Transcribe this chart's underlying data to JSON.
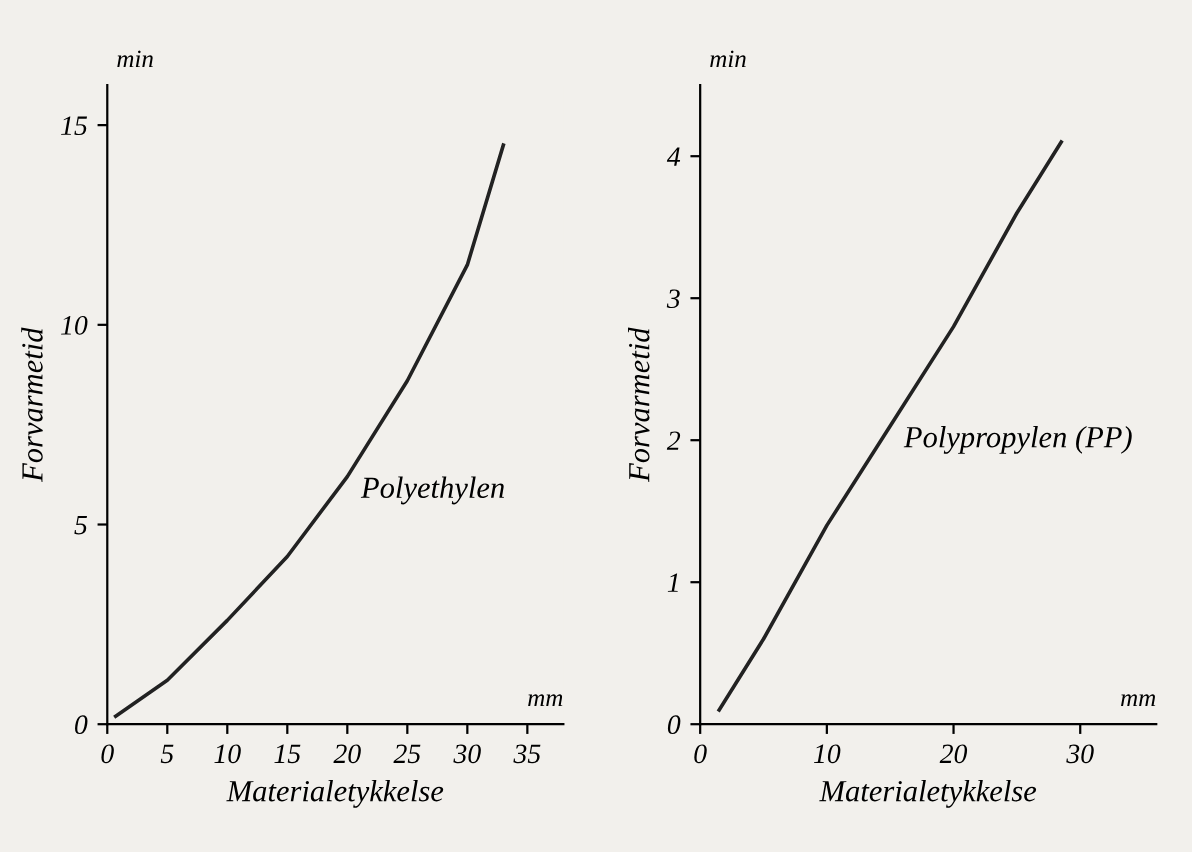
{
  "chart_data": [
    {
      "type": "line",
      "xlabel": "Materialetykkelse",
      "ylabel": "Forvarmetid",
      "annotations": [
        "min",
        "mm"
      ],
      "series": [
        {
          "name": "Polyethylen",
          "color": "#222222",
          "x": [
            0.7,
            5,
            10,
            15,
            20,
            25,
            30,
            33
          ],
          "values": [
            0.2,
            1.1,
            2.6,
            4.2,
            6.2,
            8.6,
            11.5,
            14.5
          ]
        }
      ],
      "xlim": [
        0,
        38
      ],
      "ylim": [
        0,
        16
      ],
      "xticks": [
        0,
        5,
        10,
        15,
        20,
        25,
        30,
        35
      ],
      "yticks": [
        0,
        5,
        10,
        15
      ],
      "grid": false,
      "legend": false
    },
    {
      "type": "line",
      "xlabel": "Materialetykkelse",
      "ylabel": "Forvarmetid",
      "annotations": [
        "min",
        "mm"
      ],
      "series": [
        {
          "name": "Polypropylen (PP)",
          "color": "#222222",
          "x": [
            1.5,
            5,
            10,
            15,
            20,
            25,
            28.5
          ],
          "values": [
            0.1,
            0.6,
            1.4,
            2.1,
            2.8,
            3.6,
            4.1
          ]
        }
      ],
      "xlim": [
        0,
        36
      ],
      "ylim": [
        0,
        4.5
      ],
      "xticks": [
        0,
        10,
        20,
        30
      ],
      "yticks": [
        0,
        1,
        2,
        3,
        4
      ],
      "grid": false,
      "legend": false
    }
  ]
}
